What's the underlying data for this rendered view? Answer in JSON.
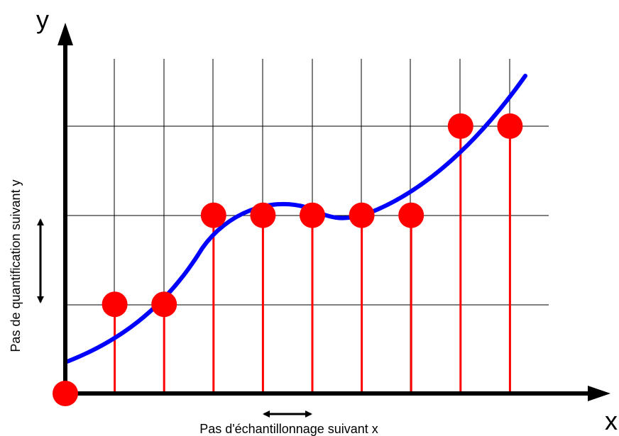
{
  "axes": {
    "y_label": "y",
    "x_label": "x"
  },
  "annotations": {
    "quantization_step": "Pas de quantification suivant y",
    "sampling_step": "Pas d'échantillonnage suivant x"
  },
  "samples": {
    "levels": [
      0,
      1,
      1,
      2,
      2,
      2,
      2,
      2,
      3,
      3
    ],
    "quantization_levels": 3,
    "sample_count": 10
  },
  "colors": {
    "signal": "#0000ff",
    "samples": "#ff0000",
    "axes": "#000000",
    "grid": "#000000"
  }
}
